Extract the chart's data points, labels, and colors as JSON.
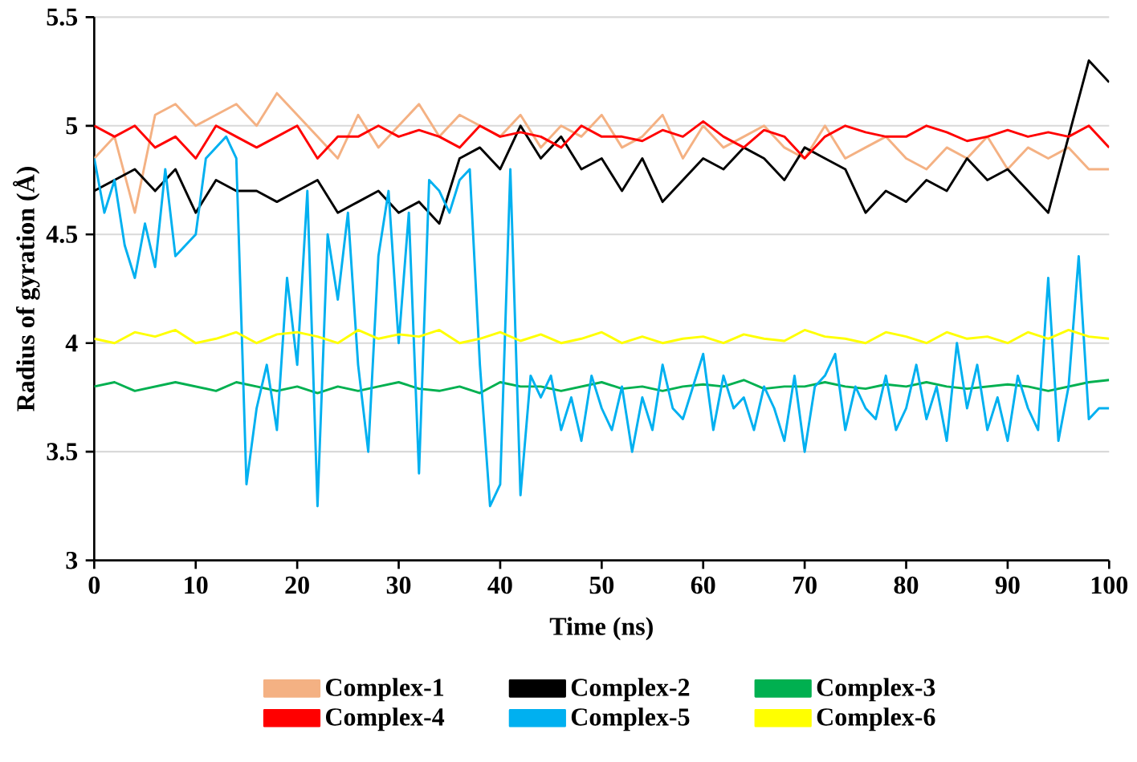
{
  "chart_data": {
    "type": "line",
    "xlabel": "Time (ns)",
    "ylabel": "Radius of gyration (Å)",
    "x": [
      0,
      2,
      4,
      6,
      8,
      10,
      12,
      14,
      16,
      18,
      20,
      22,
      24,
      26,
      28,
      30,
      32,
      34,
      36,
      38,
      40,
      42,
      44,
      46,
      48,
      50,
      52,
      54,
      56,
      58,
      60,
      62,
      64,
      66,
      68,
      70,
      72,
      74,
      76,
      78,
      80,
      82,
      84,
      86,
      88,
      90,
      92,
      94,
      96,
      98,
      100
    ],
    "xlim": [
      0,
      100
    ],
    "xticks": [
      0,
      10,
      20,
      30,
      40,
      50,
      60,
      70,
      80,
      90,
      100
    ],
    "ylim": [
      3,
      5.5
    ],
    "yticks": [
      3,
      3.5,
      4,
      4.5,
      5,
      5.5
    ],
    "grid": "y",
    "legend": "bottom",
    "marker": "none",
    "line_style": "solid",
    "series": [
      {
        "name": "Complex-1",
        "color": "#f4b183",
        "values": [
          4.85,
          4.95,
          4.6,
          5.05,
          5.1,
          5.0,
          5.05,
          5.1,
          5.0,
          5.15,
          5.05,
          4.95,
          4.85,
          5.05,
          4.9,
          5.0,
          5.1,
          4.95,
          5.05,
          5.0,
          4.95,
          5.05,
          4.9,
          5.0,
          4.95,
          5.05,
          4.9,
          4.95,
          5.05,
          4.85,
          5.0,
          4.9,
          4.95,
          5.0,
          4.9,
          4.85,
          5.0,
          4.85,
          4.9,
          4.95,
          4.85,
          4.8,
          4.9,
          4.85,
          4.95,
          4.8,
          4.9,
          4.85,
          4.9,
          4.8,
          4.8
        ]
      },
      {
        "name": "Complex-2",
        "color": "#000000",
        "values": [
          4.7,
          4.75,
          4.8,
          4.7,
          4.8,
          4.6,
          4.75,
          4.7,
          4.7,
          4.65,
          4.7,
          4.75,
          4.6,
          4.65,
          4.7,
          4.6,
          4.65,
          4.55,
          4.85,
          4.9,
          4.8,
          5.0,
          4.85,
          4.95,
          4.8,
          4.85,
          4.7,
          4.85,
          4.65,
          4.75,
          4.85,
          4.8,
          4.9,
          4.85,
          4.75,
          4.9,
          4.85,
          4.8,
          4.6,
          4.7,
          4.65,
          4.75,
          4.7,
          4.85,
          4.75,
          4.8,
          4.7,
          4.6,
          4.95,
          5.3,
          5.2
        ]
      },
      {
        "name": "Complex-3",
        "color": "#00b050",
        "values": [
          3.8,
          3.82,
          3.78,
          3.8,
          3.82,
          3.8,
          3.78,
          3.82,
          3.8,
          3.78,
          3.8,
          3.77,
          3.8,
          3.78,
          3.8,
          3.82,
          3.79,
          3.78,
          3.8,
          3.77,
          3.82,
          3.8,
          3.8,
          3.78,
          3.8,
          3.82,
          3.79,
          3.8,
          3.78,
          3.8,
          3.81,
          3.8,
          3.83,
          3.79,
          3.8,
          3.8,
          3.82,
          3.8,
          3.79,
          3.81,
          3.8,
          3.82,
          3.8,
          3.79,
          3.8,
          3.81,
          3.8,
          3.78,
          3.8,
          3.82,
          3.83
        ]
      },
      {
        "name": "Complex-4",
        "color": "#ff0000",
        "values": [
          5.0,
          4.95,
          5.0,
          4.9,
          4.95,
          4.85,
          5.0,
          4.95,
          4.9,
          4.95,
          5.0,
          4.85,
          4.95,
          4.95,
          5.0,
          4.95,
          4.98,
          4.95,
          4.9,
          5.0,
          4.95,
          4.97,
          4.95,
          4.9,
          5.0,
          4.95,
          4.95,
          4.93,
          4.98,
          4.95,
          5.02,
          4.95,
          4.9,
          4.98,
          4.95,
          4.85,
          4.95,
          5.0,
          4.97,
          4.95,
          4.95,
          5.0,
          4.97,
          4.93,
          4.95,
          4.98,
          4.95,
          4.97,
          4.95,
          5.0,
          4.9
        ]
      },
      {
        "name": "Complex-5",
        "color": "#00b0f0",
        "x": [
          0,
          1,
          2,
          3,
          4,
          5,
          6,
          7,
          8,
          9,
          10,
          11,
          12,
          13,
          14,
          15,
          16,
          17,
          18,
          19,
          20,
          21,
          22,
          23,
          24,
          25,
          26,
          27,
          28,
          29,
          30,
          31,
          32,
          33,
          34,
          35,
          36,
          37,
          38,
          39,
          40,
          41,
          42,
          43,
          44,
          45,
          46,
          47,
          48,
          49,
          50,
          51,
          52,
          53,
          54,
          55,
          56,
          57,
          58,
          59,
          60,
          61,
          62,
          63,
          64,
          65,
          66,
          67,
          68,
          69,
          70,
          71,
          72,
          73,
          74,
          75,
          76,
          77,
          78,
          79,
          80,
          81,
          82,
          83,
          84,
          85,
          86,
          87,
          88,
          89,
          90,
          91,
          92,
          93,
          94,
          95,
          96,
          97,
          98,
          99,
          100
        ],
        "values": [
          4.85,
          4.6,
          4.75,
          4.45,
          4.3,
          4.55,
          4.35,
          4.8,
          4.4,
          4.45,
          4.5,
          4.85,
          4.9,
          4.95,
          4.85,
          3.35,
          3.7,
          3.9,
          3.6,
          4.3,
          3.9,
          4.7,
          3.25,
          4.5,
          4.2,
          4.6,
          3.9,
          3.5,
          4.4,
          4.7,
          4.0,
          4.6,
          3.4,
          4.75,
          4.7,
          4.6,
          4.75,
          4.8,
          3.9,
          3.25,
          3.35,
          4.8,
          3.3,
          3.85,
          3.75,
          3.85,
          3.6,
          3.75,
          3.55,
          3.85,
          3.7,
          3.6,
          3.8,
          3.5,
          3.75,
          3.6,
          3.9,
          3.7,
          3.65,
          3.8,
          3.95,
          3.6,
          3.85,
          3.7,
          3.75,
          3.6,
          3.8,
          3.7,
          3.55,
          3.85,
          3.5,
          3.8,
          3.85,
          3.95,
          3.6,
          3.8,
          3.7,
          3.65,
          3.85,
          3.6,
          3.7,
          3.9,
          3.65,
          3.8,
          3.55,
          4.0,
          3.7,
          3.9,
          3.6,
          3.75,
          3.55,
          3.85,
          3.7,
          3.6,
          4.3,
          3.55,
          3.8,
          4.4,
          3.65,
          3.7,
          3.7
        ]
      },
      {
        "name": "Complex-6",
        "color": "#ffff00",
        "values": [
          4.02,
          4.0,
          4.05,
          4.03,
          4.06,
          4.0,
          4.02,
          4.05,
          4.0,
          4.04,
          4.05,
          4.03,
          4.0,
          4.06,
          4.02,
          4.04,
          4.03,
          4.06,
          4.0,
          4.02,
          4.05,
          4.01,
          4.04,
          4.0,
          4.02,
          4.05,
          4.0,
          4.03,
          4.0,
          4.02,
          4.03,
          4.0,
          4.04,
          4.02,
          4.01,
          4.06,
          4.03,
          4.02,
          4.0,
          4.05,
          4.03,
          4.0,
          4.05,
          4.02,
          4.03,
          4.0,
          4.05,
          4.02,
          4.06,
          4.03,
          4.02
        ]
      }
    ]
  }
}
